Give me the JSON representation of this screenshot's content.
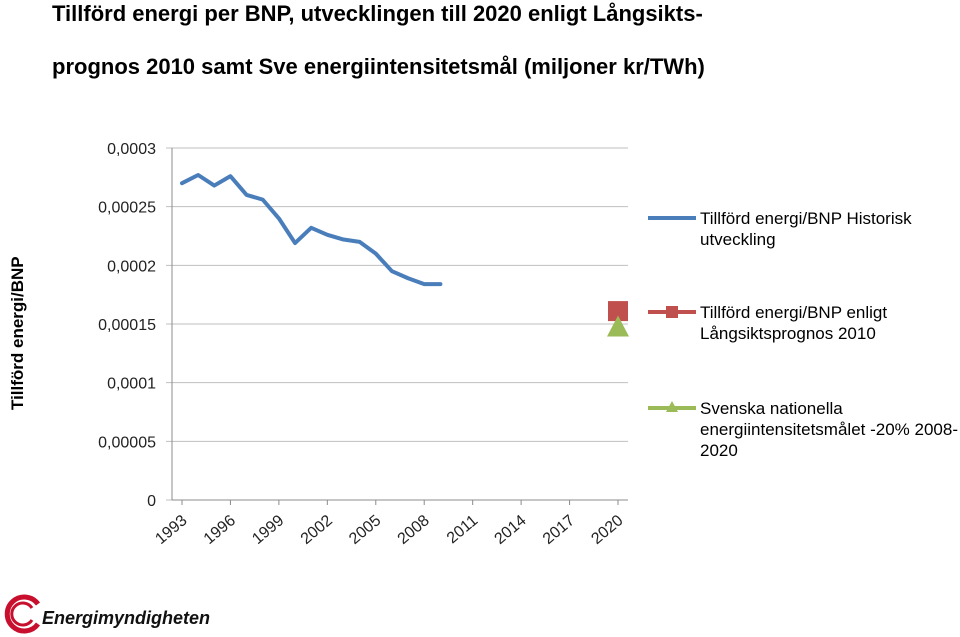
{
  "title": {
    "line1": "Tillförd energi per BNP, utvecklingen till 2020 enligt Långsikts-",
    "line2": "prognos 2010 samt Sve energiintensitetsmål (miljoner kr/TWh)"
  },
  "logo": {
    "text": "Energimyndigheten"
  },
  "chart_data": {
    "type": "line",
    "ylabel": "Tillförd energi/BNP",
    "xlabel": "",
    "ylim": [
      0,
      0.0003
    ],
    "yticks": [
      "0",
      "0,00005",
      "0,0001",
      "0,00015",
      "0,0002",
      "0,00025",
      "0,0003"
    ],
    "xlim": [
      1993,
      2020
    ],
    "xticks": [
      "1993",
      "1996",
      "1999",
      "2002",
      "2005",
      "2008",
      "2011",
      "2014",
      "2017",
      "2020"
    ],
    "grid": true,
    "legend_position": "right",
    "series": [
      {
        "name": "Tillförd energi/BNP Historisk utveckling",
        "color": "#4a7ebb",
        "marker": "none",
        "x": [
          1993,
          1994,
          1995,
          1996,
          1997,
          1998,
          1999,
          2000,
          2001,
          2002,
          2003,
          2004,
          2005,
          2006,
          2007,
          2008,
          2009
        ],
        "y": [
          0.00027,
          0.000277,
          0.000268,
          0.000276,
          0.00026,
          0.000256,
          0.00024,
          0.000219,
          0.000232,
          0.000226,
          0.000222,
          0.00022,
          0.00021,
          0.000195,
          0.000189,
          0.000184,
          0.000184
        ]
      },
      {
        "name": "Tillförd energi/BNP enligt Långsiktsprognos 2010",
        "color": "#c0504d",
        "marker": "square",
        "x": [
          2020
        ],
        "y": [
          0.000161
        ]
      },
      {
        "name": "Svenska nationella energiintensitetsmålet -20% 2008-2020",
        "color": "#9bbb59",
        "marker": "triangle",
        "x": [
          2020
        ],
        "y": [
          0.000147
        ]
      }
    ]
  }
}
